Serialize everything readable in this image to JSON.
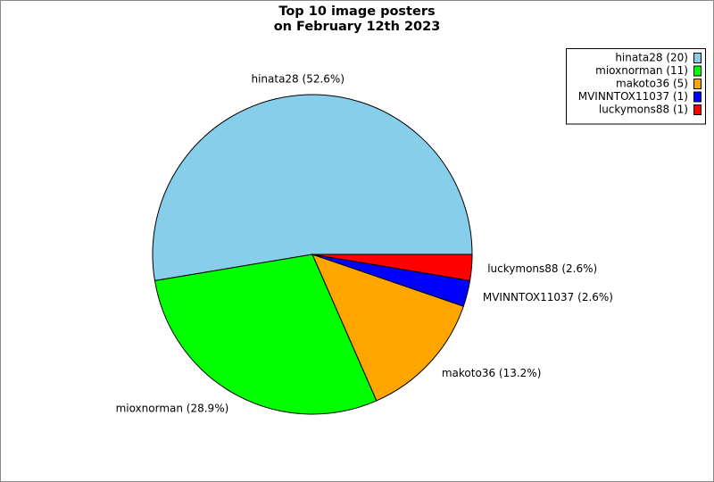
{
  "chart_data": {
    "type": "pie",
    "title": [
      "Top 10 image posters",
      "on February 12th 2023"
    ],
    "categories": [
      "hinata28",
      "mioxnorman",
      "makoto36",
      "MVINNTOX11037",
      "luckymons88"
    ],
    "values": [
      20,
      11,
      5,
      1,
      1
    ],
    "slice_labels": [
      "hinata28 (52.6%)",
      "mioxnorman (28.9%)",
      "makoto36 (13.2%)",
      "MVINNTOX11037 (2.6%)",
      "luckymons88 (2.6%)"
    ],
    "legend_labels": [
      "hinata28 (20)",
      "mioxnorman (11)",
      "makoto36 (5)",
      "MVINNTOX11037 (1)",
      "luckymons88 (1)"
    ],
    "colors": [
      "#87ceeb",
      "#00ff00",
      "#ffa500",
      "#0000ff",
      "#ff0000"
    ],
    "legend": "upper right"
  }
}
